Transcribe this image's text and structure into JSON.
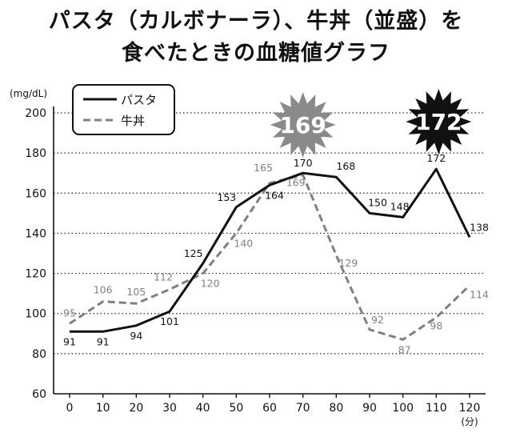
{
  "title": {
    "line1": "パスタ（カルボナーラ）、牛丼（並盛）を",
    "line2": "食べたときの血糖値グラフ"
  },
  "chart_data": {
    "type": "line",
    "title": "パスタ（カルボナーラ）、牛丼（並盛）を食べたときの血糖値グラフ",
    "ylabel": "(mg/dL)",
    "xlabel": "(分)",
    "x": [
      0,
      10,
      20,
      30,
      40,
      50,
      60,
      70,
      80,
      90,
      100,
      110,
      120
    ],
    "x_tick_labels": [
      "0",
      "10",
      "20",
      "30",
      "40",
      "50",
      "60",
      "70",
      "80",
      "90",
      "100",
      "110",
      "120"
    ],
    "ylim": [
      60,
      200
    ],
    "y_ticks": [
      60,
      80,
      100,
      120,
      140,
      160,
      180,
      200
    ],
    "y_tick_labels": [
      "60",
      "80",
      "100",
      "120",
      "140",
      "160",
      "180",
      "200"
    ],
    "grid": "horizontal dotted",
    "legend_position": "top-left",
    "series": [
      {
        "name": "パスタ",
        "style": "solid",
        "color": "#111111",
        "values": [
          91,
          91,
          94,
          101,
          125,
          153,
          164,
          170,
          168,
          150,
          148,
          172,
          138
        ],
        "labeled_points": [
          0,
          1,
          2,
          3,
          4,
          5,
          6,
          7,
          8,
          9,
          10,
          11,
          12
        ],
        "peak_badge": {
          "value": "172",
          "x": 110
        }
      },
      {
        "name": "牛丼",
        "style": "dashed",
        "color": "#808080",
        "values": [
          95,
          106,
          105,
          112,
          120,
          140,
          165,
          169,
          129,
          92,
          87,
          98,
          114
        ],
        "labeled_points": [
          0,
          1,
          2,
          3,
          4,
          5,
          6,
          7,
          8,
          9,
          10,
          11,
          12
        ],
        "peak_badge": {
          "value": "169",
          "x": 70
        }
      }
    ]
  }
}
